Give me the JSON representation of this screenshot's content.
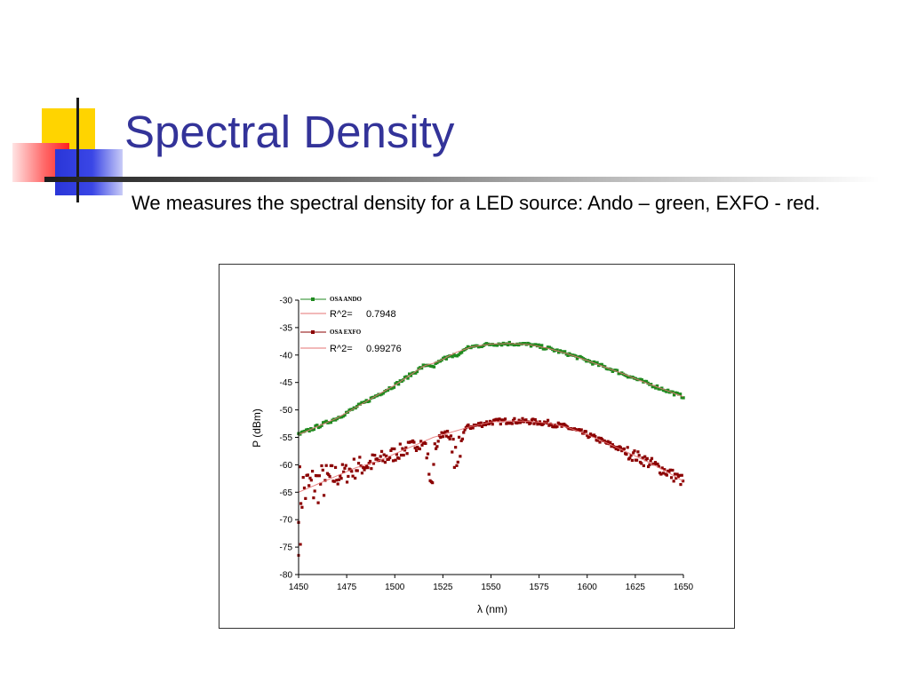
{
  "slide": {
    "title": "Spectral Density",
    "body": "We measures the spectral density for a LED source: Ando – green, EXFO - red."
  },
  "colors": {
    "title": "#333399",
    "ando": "#1f8a1f",
    "exfo": "#8b0000",
    "fit": "#e67373"
  },
  "chart_data": {
    "type": "scatter",
    "title": "",
    "xlabel": "λ (nm)",
    "ylabel": "P (dBm)",
    "xlim": [
      1450,
      1650
    ],
    "ylim": [
      -80,
      -30
    ],
    "xticks": [
      1450,
      1475,
      1500,
      1525,
      1550,
      1575,
      1600,
      1625,
      1650
    ],
    "yticks": [
      -30,
      -35,
      -40,
      -45,
      -50,
      -55,
      -60,
      -65,
      -70,
      -75,
      -80
    ],
    "legend_position": "top-left",
    "series": [
      {
        "name": "OSA ANDO",
        "fit_label": "R^2=",
        "fit_value": "0.7948",
        "color": "#1f8a1f",
        "x": [
          1450,
          1460,
          1470,
          1480,
          1490,
          1500,
          1510,
          1515,
          1520,
          1525,
          1528,
          1532,
          1540,
          1550,
          1560,
          1570,
          1580,
          1590,
          1600,
          1610,
          1620,
          1630,
          1640,
          1650
        ],
        "y": [
          -54.5,
          -53.0,
          -51.5,
          -49.5,
          -47.5,
          -45.5,
          -43.2,
          -42.0,
          -41.5,
          -40.8,
          -40.2,
          -39.5,
          -38.5,
          -38.0,
          -37.9,
          -38.1,
          -38.8,
          -39.8,
          -41.0,
          -42.3,
          -43.6,
          -45.0,
          -46.3,
          -47.6
        ],
        "dips": [
          {
            "x": 1520,
            "y": -42.2
          },
          {
            "x": 1532,
            "y": -40.8
          }
        ]
      },
      {
        "name": "OSA EXFO",
        "fit_label": "R^2=",
        "fit_value": "0.99276",
        "color": "#8b0000",
        "x": [
          1450,
          1460,
          1470,
          1480,
          1490,
          1500,
          1510,
          1520,
          1530,
          1540,
          1550,
          1560,
          1570,
          1580,
          1590,
          1600,
          1610,
          1620,
          1630,
          1640,
          1650
        ],
        "y": [
          -65.0,
          -63.5,
          -62.0,
          -60.5,
          -59.5,
          -58.0,
          -56.5,
          -55.0,
          -54.0,
          -53.0,
          -52.2,
          -52.0,
          -52.1,
          -52.4,
          -53.2,
          -54.5,
          -56.0,
          -57.6,
          -59.2,
          -61.0,
          -63.0
        ],
        "noisy_range": [
          1450,
          1475
        ],
        "low_outliers": [
          {
            "x": 1450,
            "y": -76.5
          },
          {
            "x": 1451,
            "y": -74.5
          }
        ],
        "dips": [
          {
            "x": 1519,
            "y": -64.0
          },
          {
            "x": 1532,
            "y": -62.5
          }
        ]
      }
    ]
  }
}
